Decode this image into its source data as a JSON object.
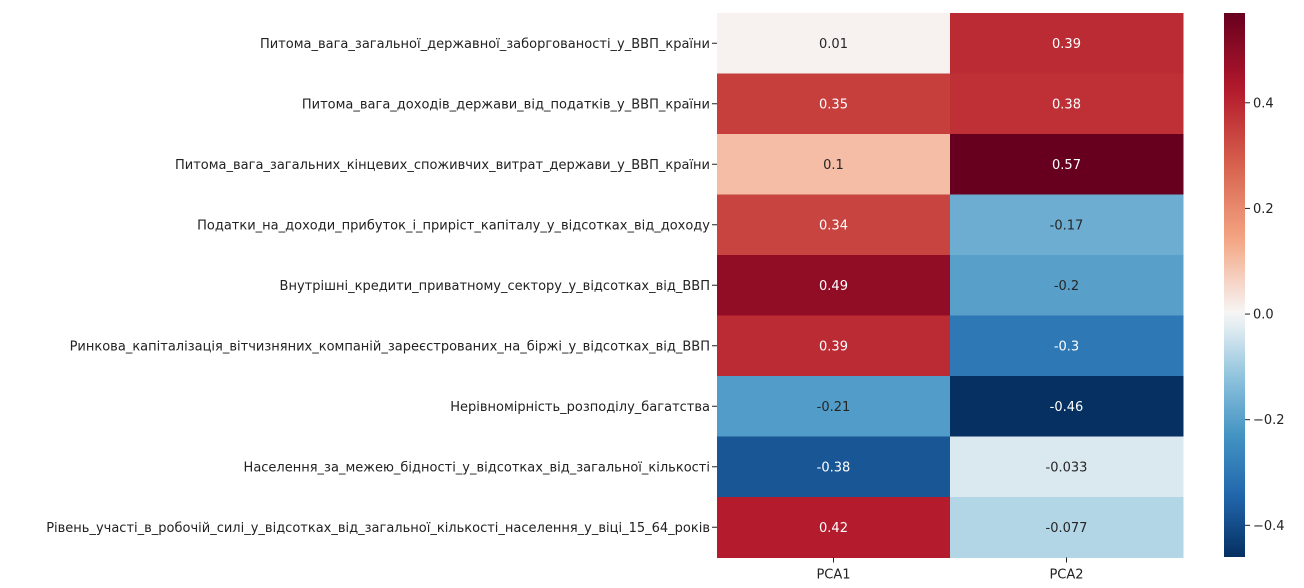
{
  "chart_data": {
    "type": "heatmap",
    "title": "",
    "xlabel": "",
    "ylabel": "",
    "columns": [
      "PCA1",
      "PCA2"
    ],
    "rows": [
      "Питома_вага_загальної_державної_заборгованості_у_ВВП_країни",
      "Питома_вага_доходів_держави_від_податків_у_ВВП_країни",
      "Питома_вага_загальних_кінцевих_споживчих_витрат_держави_у_ВВП_країни",
      "Податки_на_доходи_прибуток_і_приріст_капіталу_у_відсотках_від_доходу",
      "Внутрішні_кредити_приватному_сектору_у_відсотках_від_ВВП",
      "Ринкова_капіталізація_вітчизняних_компаній_зареєстрованих_на_біржі_у_відсотках_від_ВВП",
      "Нерівномірність_розподілу_багатства",
      "Населення_за_межею_бідності_у_відсотках_від_загальної_кількості",
      "Рівень_участі_в_робочій_силі_у_відсотках_від_загальної_кількості_населення_у_віці_15_64_років"
    ],
    "values": [
      [
        0.01,
        0.39
      ],
      [
        0.35,
        0.38
      ],
      [
        0.1,
        0.57
      ],
      [
        0.34,
        -0.17
      ],
      [
        0.49,
        -0.2
      ],
      [
        0.39,
        -0.3
      ],
      [
        -0.21,
        -0.46
      ],
      [
        -0.38,
        -0.033
      ],
      [
        0.42,
        -0.077
      ]
    ],
    "annotations": [
      [
        "0.01",
        "0.39"
      ],
      [
        "0.35",
        "0.38"
      ],
      [
        "0.1",
        "0.57"
      ],
      [
        "0.34",
        "-0.17"
      ],
      [
        "0.49",
        "-0.2"
      ],
      [
        "0.39",
        "-0.3"
      ],
      [
        "-0.21",
        "-0.46"
      ],
      [
        "-0.38",
        "-0.033"
      ],
      [
        "0.42",
        "-0.077"
      ]
    ],
    "colormap": "RdBu_r",
    "vmin": -0.46,
    "vmax": 0.57,
    "colorbar": {
      "ticks": [
        -0.4,
        -0.2,
        0.0,
        0.2,
        0.4
      ],
      "tick_labels": [
        "−0.4",
        "−0.2",
        "0.0",
        "0.2",
        "0.4"
      ]
    },
    "grid": false,
    "legend": "colorbar-right"
  }
}
